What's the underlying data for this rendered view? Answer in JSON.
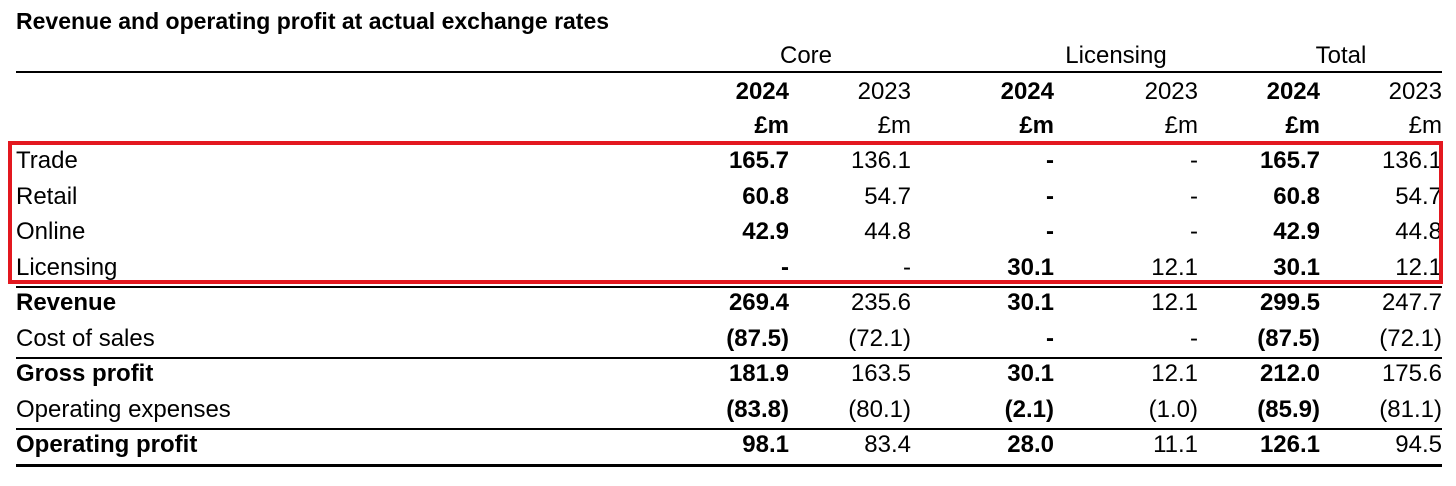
{
  "title": "Revenue and operating profit at actual exchange rates",
  "groups": [
    "Core",
    "Licensing",
    "Total"
  ],
  "years": [
    "2024",
    "2023",
    "2024",
    "2023",
    "2024",
    "2023"
  ],
  "units": [
    "£m",
    "£m",
    "£m",
    "£m",
    "£m",
    "£m"
  ],
  "rows": [
    {
      "label": "Trade",
      "values": [
        "165.7",
        "136.1",
        "-",
        "-",
        "165.7",
        "136.1"
      ],
      "bold_label": false
    },
    {
      "label": "Retail",
      "values": [
        "60.8",
        "54.7",
        "-",
        "-",
        "60.8",
        "54.7"
      ],
      "bold_label": false
    },
    {
      "label": "Online",
      "values": [
        "42.9",
        "44.8",
        "-",
        "-",
        "42.9",
        "44.8"
      ],
      "bold_label": false
    },
    {
      "label": "Licensing",
      "values": [
        "-",
        "-",
        "30.1",
        "12.1",
        "30.1",
        "12.1"
      ],
      "bold_label": false
    },
    {
      "label": "Revenue",
      "values": [
        "269.4",
        "235.6",
        "30.1",
        "12.1",
        "299.5",
        "247.7"
      ],
      "bold_label": true
    },
    {
      "label": "Cost of sales",
      "values": [
        "(87.5)",
        "(72.1)",
        "-",
        "-",
        "(87.5)",
        "(72.1)"
      ],
      "bold_label": false
    },
    {
      "label": "Gross profit",
      "values": [
        "181.9",
        "163.5",
        "30.1",
        "12.1",
        "212.0",
        "175.6"
      ],
      "bold_label": true
    },
    {
      "label": "Operating expenses",
      "values": [
        "(83.8)",
        "(80.1)",
        "(2.1)",
        "(1.0)",
        "(85.9)",
        "(81.1)"
      ],
      "bold_label": false
    },
    {
      "label": "Operating profit",
      "values": [
        "98.1",
        "83.4",
        "28.0",
        "11.1",
        "126.1",
        "94.5"
      ],
      "bold_label": true
    }
  ],
  "highlight_color": "#e3181f"
}
